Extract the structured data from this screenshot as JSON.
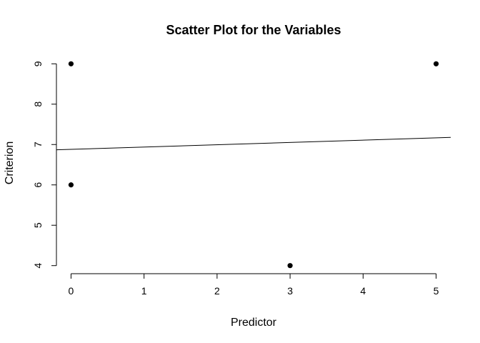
{
  "chart_data": {
    "type": "scatter",
    "title": "Scatter Plot for the Variables",
    "xlabel": "Predictor",
    "ylabel": "Criterion",
    "xlim": [
      -0.2,
      5.2
    ],
    "ylim": [
      3.8,
      9.2
    ],
    "x_ticks": [
      0,
      1,
      2,
      3,
      4,
      5
    ],
    "y_ticks": [
      4,
      5,
      6,
      7,
      8,
      9
    ],
    "x_tick_labels": [
      "0",
      "1",
      "2",
      "3",
      "4",
      "5"
    ],
    "y_tick_labels": [
      "4",
      "5",
      "6",
      "7",
      "8",
      "9"
    ],
    "points": [
      {
        "x": 0,
        "y": 9
      },
      {
        "x": 0,
        "y": 6
      },
      {
        "x": 3,
        "y": 4
      },
      {
        "x": 5,
        "y": 9
      }
    ],
    "regression_line": {
      "intercept": 6.88,
      "slope": 0.057
    },
    "grid": false,
    "box": false,
    "marker_color": "#000000",
    "line_color": "#000000"
  }
}
